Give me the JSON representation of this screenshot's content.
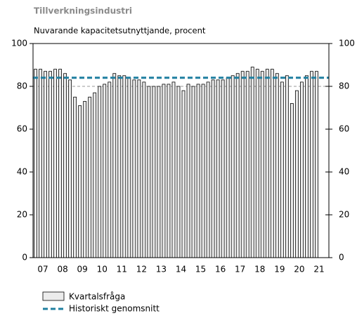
{
  "chart_data": {
    "type": "bar",
    "title": "Tillverkningsindustri",
    "subtitle": "Nuvarande kapacitetsutnyttjande, procent",
    "x": [
      2007,
      2007.25,
      2007.5,
      2007.75,
      2008,
      2008.25,
      2008.5,
      2008.75,
      2009,
      2009.25,
      2009.5,
      2009.75,
      2010,
      2010.25,
      2010.5,
      2010.75,
      2011,
      2011.25,
      2011.5,
      2011.75,
      2012,
      2012.25,
      2012.5,
      2012.75,
      2013,
      2013.25,
      2013.5,
      2013.75,
      2014,
      2014.25,
      2014.5,
      2014.75,
      2015,
      2015.25,
      2015.5,
      2015.75,
      2016,
      2016.25,
      2016.5,
      2016.75,
      2017,
      2017.25,
      2017.5,
      2017.75,
      2018,
      2018.25,
      2018.5,
      2018.75,
      2019,
      2019.25,
      2019.5,
      2019.75,
      2020,
      2020.25,
      2020.5,
      2020.75,
      2021,
      2021.25
    ],
    "series": [
      {
        "name": "Kvartalsfråga",
        "color": "#ececec",
        "values": [
          88,
          88,
          87,
          87,
          88,
          88,
          86,
          83,
          75,
          71,
          73,
          75,
          77,
          80,
          81,
          82,
          86,
          85,
          85,
          84,
          83,
          83,
          82,
          80,
          80,
          80,
          81,
          81,
          82,
          80,
          78,
          81,
          80,
          81,
          81,
          82,
          83,
          83,
          83,
          84,
          85,
          86,
          87,
          87,
          89,
          88,
          87,
          88,
          88,
          86,
          82,
          85,
          72,
          78,
          82,
          85,
          87,
          87
        ]
      }
    ],
    "average": {
      "name": "Historiskt genomsnitt",
      "color": "#1f7fa0",
      "value": 84
    },
    "hline": 80,
    "xlim": [
      2007,
      2022
    ],
    "xticks": [
      {
        "value": 2007.5,
        "label": "07"
      },
      {
        "value": 2008.5,
        "label": "08"
      },
      {
        "value": 2009.5,
        "label": "09"
      },
      {
        "value": 2010.5,
        "label": "10"
      },
      {
        "value": 2011.5,
        "label": "11"
      },
      {
        "value": 2012.5,
        "label": "12"
      },
      {
        "value": 2013.5,
        "label": "13"
      },
      {
        "value": 2014.5,
        "label": "14"
      },
      {
        "value": 2015.5,
        "label": "15"
      },
      {
        "value": 2016.5,
        "label": "16"
      },
      {
        "value": 2017.5,
        "label": "17"
      },
      {
        "value": 2018.5,
        "label": "18"
      },
      {
        "value": 2019.5,
        "label": "19"
      },
      {
        "value": 2020.5,
        "label": "20"
      },
      {
        "value": 2021.5,
        "label": "21"
      }
    ],
    "ylim": [
      0,
      100
    ],
    "yticks": [
      0,
      20,
      40,
      60,
      80,
      100
    ],
    "y2lim": [
      0,
      100
    ],
    "y2ticks": [
      0,
      20,
      40,
      60,
      80,
      100
    ]
  }
}
